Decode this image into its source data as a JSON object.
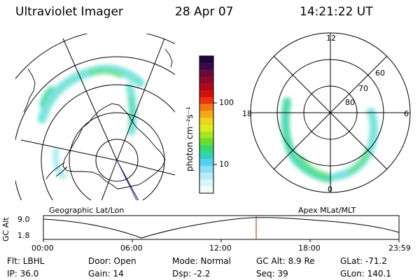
{
  "header": {
    "instrument": "Ultraviolet Imager",
    "date": "28 Apr 07",
    "time": "14:21:22 UT"
  },
  "colorbar": {
    "unit_label": "photon cm⁻²s⁻¹",
    "ticks": [
      "100",
      "10"
    ],
    "colors": [
      "#1a0a3a",
      "#3a0a4a",
      "#6a0a3a",
      "#8a0a2a",
      "#b00a1a",
      "#d01010",
      "#ee3010",
      "#f07a10",
      "#f2a818",
      "#f0d020",
      "#d8ee20",
      "#a8e620",
      "#6ade30",
      "#36d870",
      "#36cfb8",
      "#52d0ee",
      "#86dff2",
      "#b6ecf5",
      "#dcf5f8",
      "#f2fbfb"
    ]
  },
  "left_map": {
    "label": "Geographic Lat/Lon"
  },
  "right_map": {
    "label": "Apex MLat/MLT",
    "mlt_labels": {
      "top": "12",
      "left": "18",
      "right": "6",
      "bottom": "0"
    },
    "lat_labels": [
      "60",
      "70",
      "80"
    ]
  },
  "altitude_plot": {
    "ylabel": "GC Alt",
    "y_ticks": [
      "9.0",
      "1.8"
    ],
    "x_ticks": [
      "00:00",
      "06:00",
      "12:00",
      "18:00",
      "23:59"
    ],
    "marker_color": "#cc2200"
  },
  "info": {
    "flt": "Flt: LBHL",
    "ip": "IP: 36.0",
    "door": "Door: Open",
    "gain": "Gain: 14",
    "mode": "Mode: Normal",
    "dsp": "Dsp:    -2.2",
    "gcalt": "GC Alt: 8.9 Re",
    "seq": "Seq: 39",
    "glat": "GLat: -71.2",
    "glon": "GLon: 140.1"
  }
}
